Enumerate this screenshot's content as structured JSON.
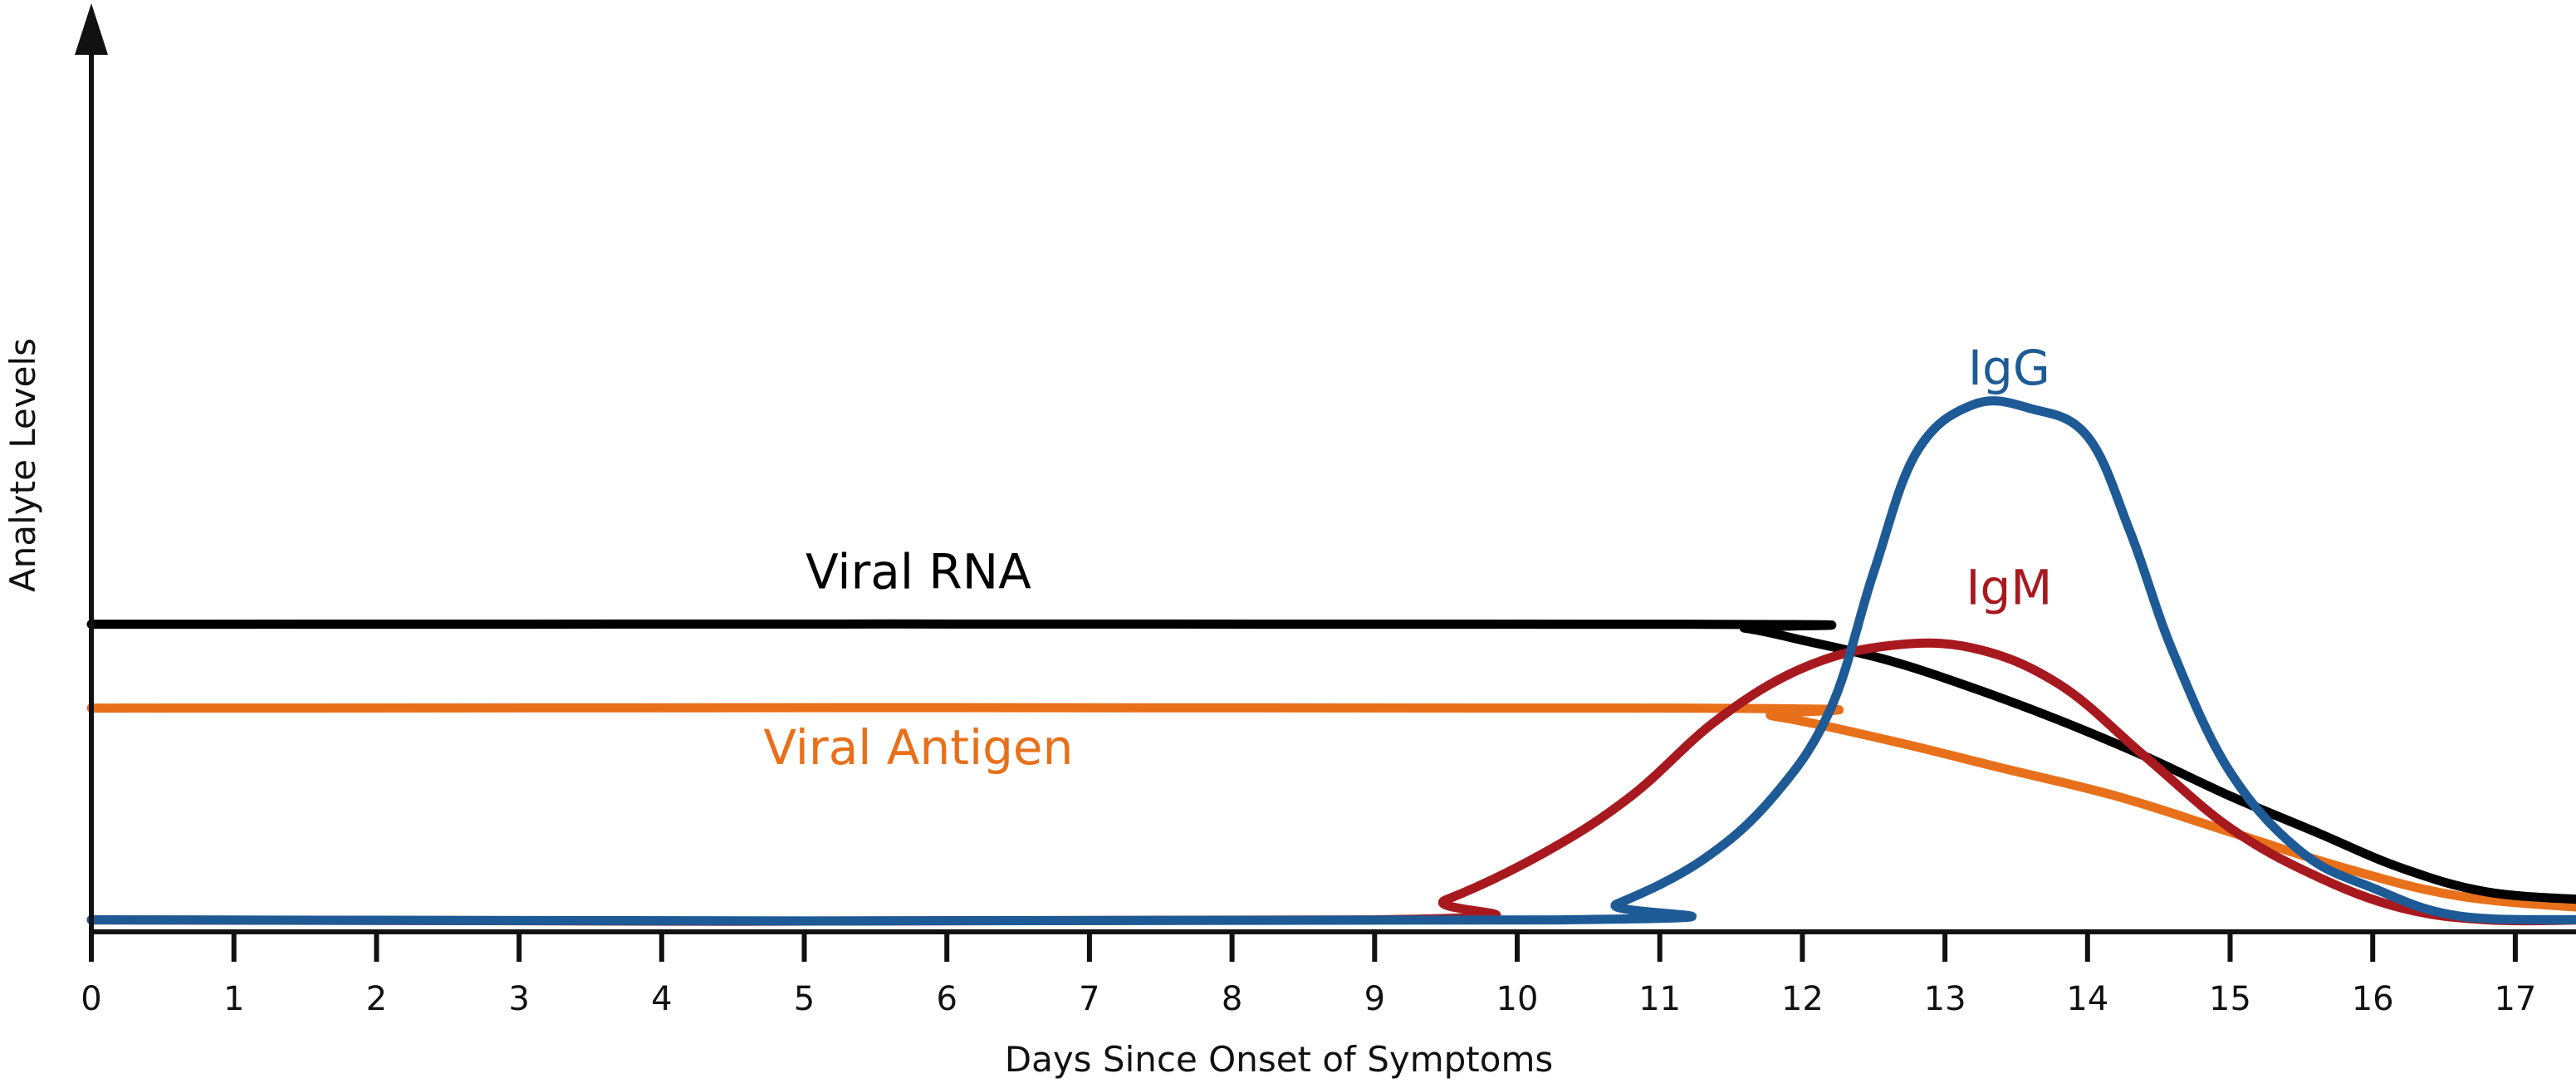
{
  "chart_data": {
    "type": "line",
    "title": "",
    "xlabel": "Days Since Onset of Symptoms",
    "ylabel": "Analyte Levels",
    "xlim": [
      0,
      17.5
    ],
    "ylim": [
      0,
      1
    ],
    "ticks": [
      "0",
      "1",
      "2",
      "3",
      "4",
      "5",
      "6",
      "7",
      "8",
      "9",
      "10",
      "11",
      "12",
      "13",
      "14",
      "15",
      "16",
      "17"
    ],
    "grid": false,
    "y_axis_arrow": true,
    "series": [
      {
        "name": "Viral RNA",
        "color": "#000000",
        "points": [
          [
            0,
            0.385
          ],
          [
            11.2,
            0.385
          ],
          [
            11.6,
            0.38
          ],
          [
            12,
            0.365
          ],
          [
            12.6,
            0.34
          ],
          [
            13.2,
            0.305
          ],
          [
            13.8,
            0.265
          ],
          [
            14.4,
            0.22
          ],
          [
            15,
            0.17
          ],
          [
            15.6,
            0.125
          ],
          [
            16.2,
            0.08
          ],
          [
            16.8,
            0.05
          ],
          [
            17.5,
            0.04
          ]
        ]
      },
      {
        "name": "Viral Antigen",
        "color": "#E8701A",
        "points": [
          [
            0,
            0.28
          ],
          [
            11.2,
            0.28
          ],
          [
            11.8,
            0.27
          ],
          [
            12.6,
            0.24
          ],
          [
            13.4,
            0.205
          ],
          [
            14.2,
            0.17
          ],
          [
            15,
            0.125
          ],
          [
            15.8,
            0.08
          ],
          [
            16.6,
            0.045
          ],
          [
            17.5,
            0.03
          ]
        ]
      },
      {
        "name": "IgM",
        "color": "#A8191F",
        "points": [
          [
            0,
            0.015
          ],
          [
            9,
            0.015
          ],
          [
            9.5,
            0.04
          ],
          [
            10.2,
            0.1
          ],
          [
            10.8,
            0.17
          ],
          [
            11.4,
            0.265
          ],
          [
            12,
            0.33
          ],
          [
            12.6,
            0.358
          ],
          [
            13.2,
            0.355
          ],
          [
            13.8,
            0.31
          ],
          [
            14.4,
            0.22
          ],
          [
            15,
            0.13
          ],
          [
            15.6,
            0.07
          ],
          [
            16.2,
            0.03
          ],
          [
            16.8,
            0.015
          ],
          [
            17.5,
            0.015
          ]
        ]
      },
      {
        "name": "IgG",
        "color": "#1D5A96",
        "points": [
          [
            0,
            0.015
          ],
          [
            10.3,
            0.015
          ],
          [
            10.7,
            0.035
          ],
          [
            11.3,
            0.09
          ],
          [
            11.8,
            0.17
          ],
          [
            12.2,
            0.28
          ],
          [
            12.5,
            0.45
          ],
          [
            12.8,
            0.6
          ],
          [
            13.2,
            0.66
          ],
          [
            13.6,
            0.655
          ],
          [
            14,
            0.62
          ],
          [
            14.3,
            0.5
          ],
          [
            14.6,
            0.35
          ],
          [
            15,
            0.2
          ],
          [
            15.5,
            0.1
          ],
          [
            16,
            0.055
          ],
          [
            16.6,
            0.02
          ],
          [
            17.5,
            0.015
          ]
        ]
      }
    ],
    "labels": [
      {
        "text": "Viral RNA",
        "color": "#000000",
        "x": 5.8,
        "y": 0.43
      },
      {
        "text": "Viral Antigen",
        "color": "#E8701A",
        "x": 5.8,
        "y": 0.21
      },
      {
        "text": "IgM",
        "color": "#A8191F",
        "x": 13.45,
        "y": 0.41
      },
      {
        "text": "IgG",
        "color": "#1D5A96",
        "x": 13.45,
        "y": 0.685
      }
    ]
  }
}
